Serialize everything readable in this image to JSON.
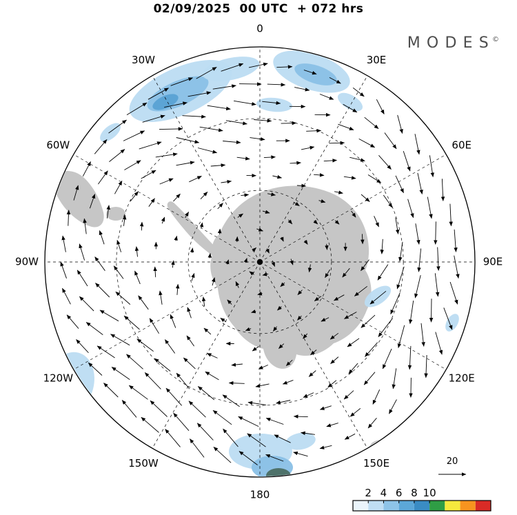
{
  "title": "02/09/2025  00 UTC  + 072 hrs",
  "logo": {
    "text": "MODES",
    "sup": "©"
  },
  "chart_data": {
    "type": "vector_field_map",
    "projection": "south_polar_stereographic_0_at_top",
    "title": "02/09/2025  00 UTC  + 072 hrs",
    "valid_date": "02/09/2025",
    "valid_time": "00 UTC",
    "lead_hours": "+ 072 hrs",
    "field": "wind vector field with blue shaded magnitude over Antarctica / Southern Ocean",
    "longitude_labels": [
      {
        "text": "0",
        "angle": 0
      },
      {
        "text": "30E",
        "angle": 30
      },
      {
        "text": "60E",
        "angle": 60
      },
      {
        "text": "90E",
        "angle": 90
      },
      {
        "text": "120E",
        "angle": 120
      },
      {
        "text": "150E",
        "angle": 150
      },
      {
        "text": "180",
        "angle": 180
      },
      {
        "text": "150W",
        "angle": 210
      },
      {
        "text": "120W",
        "angle": 240
      },
      {
        "text": "90W",
        "angle": 270
      },
      {
        "text": "60W",
        "angle": 300
      },
      {
        "text": "30W",
        "angle": 330
      }
    ],
    "meridian_step_deg": 30,
    "latitude_circle_radii_fraction": [
      0.333,
      0.667
    ],
    "reference_vector": {
      "label": "20",
      "value": 20
    },
    "colorbar": {
      "position": "bottom-right",
      "tick_labels": [
        "2",
        "4",
        "6",
        "8",
        "10"
      ],
      "tick_values": [
        2,
        4,
        6,
        8,
        10
      ],
      "segment_colors": [
        "#eaf4fb",
        "#c0def3",
        "#8ec4e8",
        "#5ca7d8",
        "#3a8cc4",
        "#2f9e45",
        "#f6e93d",
        "#f7941f",
        "#d92b26"
      ]
    },
    "shading_colors": {
      "light": "#bcdcf2",
      "medium": "#8ac0e6",
      "deep": "#5aa2d4",
      "dark": "#4b6e63"
    },
    "land_color": "#c6c6c6",
    "line_color": "#000000"
  }
}
